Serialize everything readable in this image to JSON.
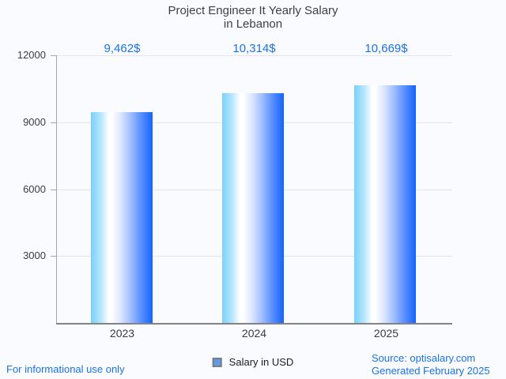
{
  "title": {
    "line1": "Project Engineer It Yearly Salary",
    "line2": "in Lebanon"
  },
  "chart_data": {
    "type": "bar",
    "title": "Project Engineer It Yearly Salary in Lebanon",
    "categories": [
      "2023",
      "2024",
      "2025"
    ],
    "series": [
      {
        "name": "Salary in USD",
        "values": [
          9462,
          10314,
          10669
        ]
      }
    ],
    "value_labels": [
      "9,462$",
      "10,314$",
      "10,669$"
    ],
    "xlabel": "",
    "ylabel": "",
    "ylim": [
      0,
      12000
    ],
    "yticks": [
      3000,
      6000,
      9000,
      12000
    ],
    "ytick_labels": [
      "3000",
      "6000",
      "9000",
      "12000"
    ],
    "grid": true,
    "legend_position": "bottom",
    "bar_gradient": [
      "#79d1fb",
      "#ffffff",
      "#1463fe"
    ]
  },
  "legend": {
    "label": "Salary in USD",
    "marker_color": "#5c9ced"
  },
  "footer": {
    "left": "For informational use only",
    "source": "Source: optisalary.com",
    "generated": "Generated February 2025"
  },
  "colors": {
    "accent": "#1a73e8",
    "title_text": "#3f3f3f",
    "background": "#fafbfe",
    "gridline": "#e4e5e8",
    "axis": "#838383"
  }
}
